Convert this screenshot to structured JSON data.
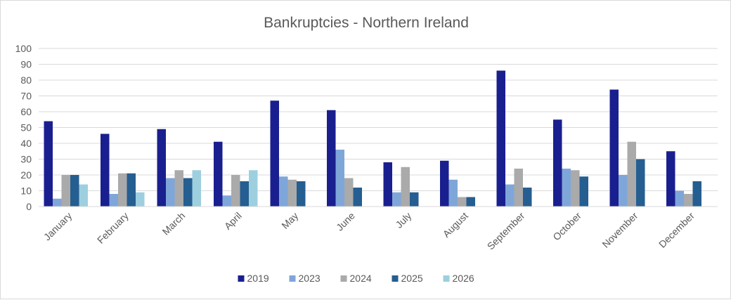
{
  "chart_data": {
    "type": "bar",
    "title": "Bankruptcies - Northern Ireland",
    "xlabel": "",
    "ylabel": "",
    "ylim": [
      0,
      100
    ],
    "yticks": [
      0,
      10,
      20,
      30,
      40,
      50,
      60,
      70,
      80,
      90,
      100
    ],
    "grid": true,
    "legend_position": "bottom",
    "categories": [
      "January",
      "February",
      "March",
      "April",
      "May",
      "June",
      "July",
      "August",
      "September",
      "October",
      "November",
      "December"
    ],
    "series": [
      {
        "name": "2019",
        "color": "#1a1f8f",
        "values": [
          54,
          46,
          49,
          41,
          67,
          61,
          28,
          29,
          86,
          55,
          74,
          35
        ]
      },
      {
        "name": "2023",
        "color": "#7fa6d9",
        "values": [
          5,
          8,
          18,
          7,
          19,
          36,
          9,
          17,
          14,
          24,
          20,
          10
        ]
      },
      {
        "name": "2024",
        "color": "#aaaaaa",
        "values": [
          20,
          21,
          23,
          20,
          17,
          18,
          25,
          6,
          24,
          23,
          41,
          8
        ]
      },
      {
        "name": "2025",
        "color": "#255e91",
        "values": [
          20,
          21,
          18,
          16,
          16,
          12,
          9,
          6,
          12,
          19,
          30,
          16
        ]
      },
      {
        "name": "2026",
        "color": "#9dcfdf",
        "values": [
          14,
          9,
          23,
          23,
          null,
          null,
          null,
          null,
          null,
          null,
          null,
          null
        ]
      }
    ]
  }
}
